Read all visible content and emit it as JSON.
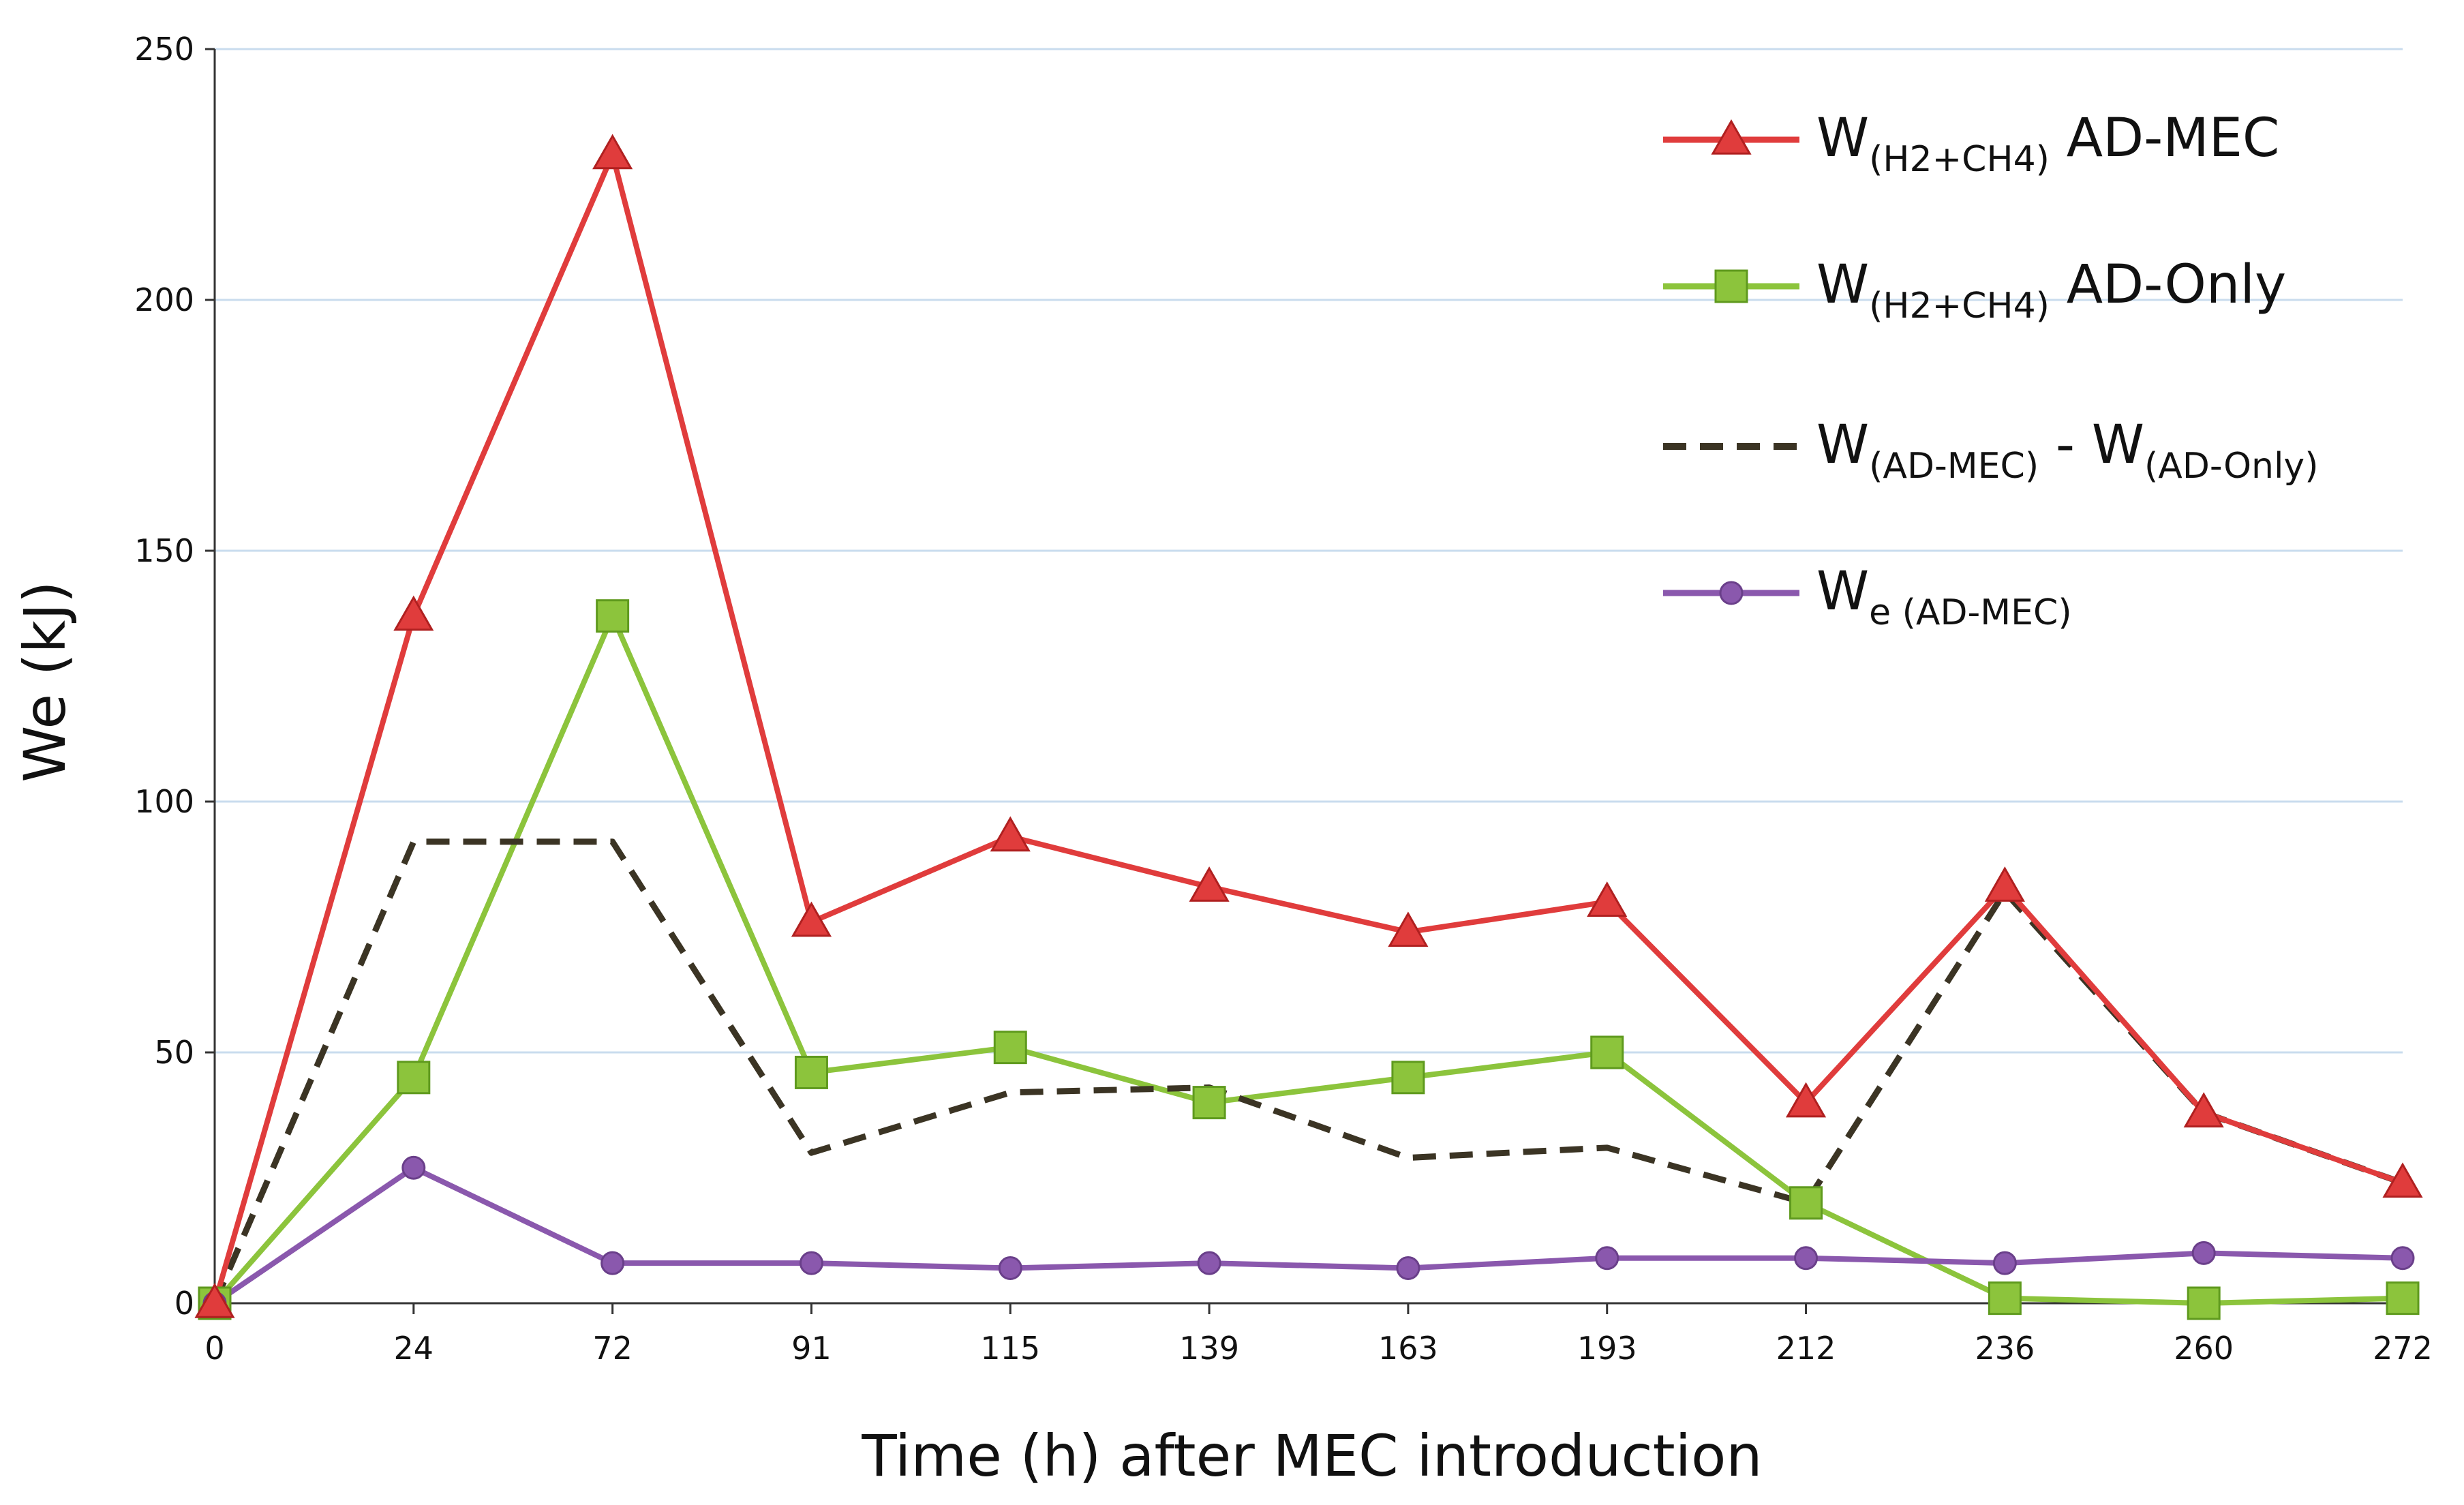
{
  "chart_data": {
    "type": "line",
    "title": "",
    "xlabel": "Time (h) after MEC introduction",
    "ylabel": "We (kJ)",
    "categories": [
      "0",
      "24",
      "72",
      "91",
      "115",
      "139",
      "163",
      "193",
      "212",
      "236",
      "260",
      "272"
    ],
    "ylim": [
      0,
      250
    ],
    "yticks": [
      0,
      50,
      100,
      150,
      200,
      250
    ],
    "grid": "horizontal",
    "legend_position": "top-right",
    "series": [
      {
        "name": "W(H2+CH4) AD-MEC",
        "legend_main": "W",
        "legend_sub": "(H2+CH4)",
        "legend_tail": " AD-MEC",
        "color": "#e03c3c",
        "dash": "solid",
        "marker": "triangle",
        "values": [
          0,
          137,
          229,
          76,
          93,
          83,
          74,
          80,
          40,
          83,
          38,
          24
        ]
      },
      {
        "name": "W(H2+CH4) AD-Only",
        "legend_main": "W",
        "legend_sub": "(H2+CH4)",
        "legend_tail": " AD-Only",
        "color": "#8cc43c",
        "dash": "solid",
        "marker": "square",
        "values": [
          0,
          45,
          137,
          46,
          51,
          40,
          45,
          50,
          20,
          1,
          0,
          1
        ]
      },
      {
        "name": "W(AD-MEC) - W(AD-Only)",
        "legend_main": "W",
        "legend_sub": "(AD-MEC)",
        "legend_tail": " - W",
        "legend_sub2": "(AD-Only)",
        "color": "#3b3424",
        "dash": "dashed",
        "marker": "none",
        "values": [
          0,
          92,
          92,
          30,
          42,
          43,
          29,
          31,
          20,
          82,
          38,
          24
        ]
      },
      {
        "name": "We (AD-MEC)",
        "legend_main": "W",
        "legend_sub": "e (AD-MEC)",
        "legend_tail": "",
        "color": "#8a58ad",
        "dash": "solid",
        "marker": "circle",
        "values": [
          0,
          27,
          8,
          8,
          7,
          8,
          7,
          9,
          9,
          8,
          10,
          9
        ]
      }
    ]
  }
}
